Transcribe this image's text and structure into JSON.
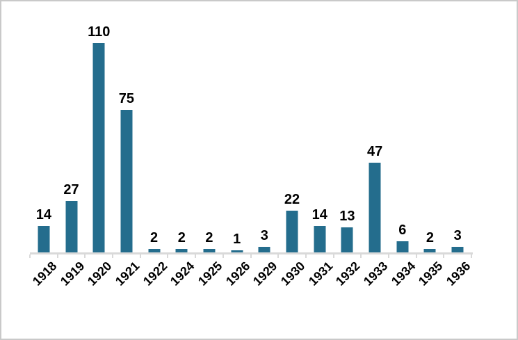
{
  "figure": {
    "background": "#ffffff",
    "frame_border_color": "#c9c9c9"
  },
  "chart_data": {
    "type": "bar",
    "title": "",
    "xlabel": "",
    "ylabel": "",
    "categories": [
      "1918",
      "1919",
      "1920",
      "1921",
      "1922",
      "1924",
      "1925",
      "1926",
      "1929",
      "1930",
      "1931",
      "1932",
      "1933",
      "1934",
      "1935",
      "1936"
    ],
    "values": [
      14,
      27,
      110,
      75,
      2,
      2,
      2,
      1,
      3,
      22,
      14,
      13,
      47,
      6,
      2,
      3
    ],
    "ylim": [
      0,
      110
    ],
    "grid": false,
    "legend": false,
    "data_labels": true,
    "bar_color": "#246d8d",
    "axis_line_color": "#d9d9d9",
    "text_color": "#000000",
    "x_tick_label_rotation_deg": -45
  }
}
